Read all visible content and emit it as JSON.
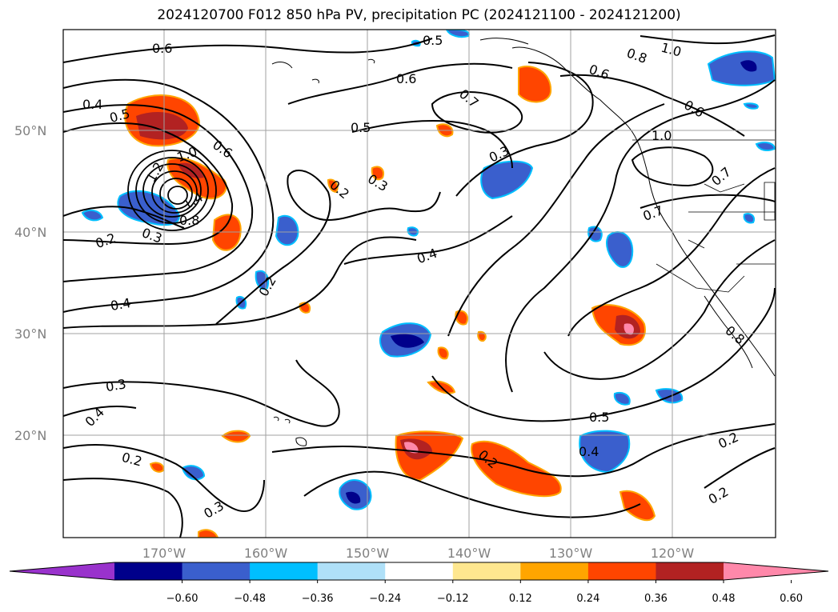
{
  "title": "2024120700 F012 850 hPa PV, precipitation PC (2024121100 - 2024121200)",
  "lat_labels": [
    "50°N",
    "40°N",
    "30°N",
    "20°N"
  ],
  "lon_labels": [
    "170°W",
    "160°W",
    "150°W",
    "140°W",
    "130°W",
    "120°W"
  ],
  "contour_labels": [
    "0.6",
    "0.5",
    "0.8",
    "1.0",
    "0.4",
    "0.5",
    "0.6",
    "0.6",
    "0.7",
    "0.6",
    "0.5",
    "1.0",
    "0.6",
    "0.3",
    "1.0",
    "1.2",
    "1.4",
    "0.8",
    "0.3",
    "0.2",
    "0.3",
    "0.2",
    "0.7",
    "0.7",
    "0.4",
    "0.2",
    "0.4",
    "0.3",
    "0.4",
    "0.2",
    "0.3",
    "0.5",
    "0.4",
    "0.2",
    "0.2",
    "0.2",
    "0.8"
  ],
  "colorbar": {
    "ticks": [
      "−0.60",
      "−0.48",
      "−0.36",
      "−0.24",
      "−0.12",
      "0.12",
      "0.24",
      "0.36",
      "0.48",
      "0.60"
    ],
    "colors": [
      "#9932cc",
      "#00008b",
      "#3a5fcd",
      "#00bfff",
      "#afe0f8",
      "#ffffff",
      "#fee78f",
      "#ffa500",
      "#ff4500",
      "#b22222",
      "#ff88aa"
    ]
  }
}
